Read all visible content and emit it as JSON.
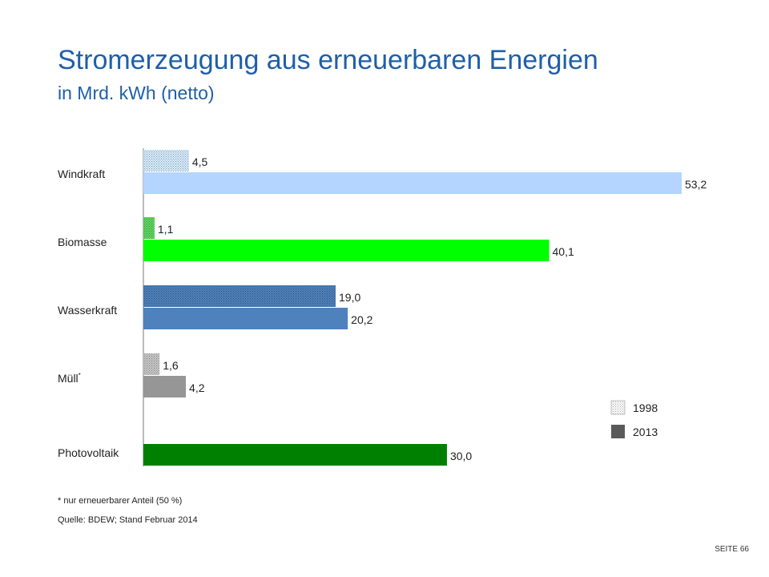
{
  "title": "Stromerzeugung aus erneuerbaren Energien",
  "subtitle": "in Mrd. kWh (netto)",
  "footnote": "* nur erneuerbarer  Anteil (50 %)",
  "source": "Quelle:  BDEW; Stand Februar 2014",
  "page": "SEITE 66",
  "chart_data": {
    "type": "bar",
    "orientation": "horizontal",
    "categories": [
      "Windkraft",
      "Biomasse",
      "Wasserkraft",
      "Müll",
      "Photovoltaik"
    ],
    "category_marks": [
      "",
      "",
      "",
      "*",
      ""
    ],
    "series": [
      {
        "name": "1998",
        "values": [
          4.5,
          1.1,
          19.0,
          1.6,
          null
        ],
        "labels": [
          "4,5",
          "1,1",
          "19,0",
          "1,6",
          ""
        ]
      },
      {
        "name": "2013",
        "values": [
          53.2,
          40.1,
          20.2,
          4.2,
          30.0
        ],
        "labels": [
          "53,2",
          "40,1",
          "20,2",
          "4,2",
          "30,0"
        ]
      }
    ],
    "colors": {
      "2013": [
        "#b3d5ff",
        "#00ff00",
        "#4f81bd",
        "#969696",
        "#008000"
      ],
      "1998": [
        "#d6ecff",
        "#5fd85f",
        "#4f81bd",
        "#c8c8c8",
        "#008000"
      ],
      "legend_1998": "#8a8a8a",
      "legend_2013": "#5a5a5a"
    },
    "xlim": [
      0,
      53.2
    ],
    "legend_position": "bottom-right",
    "grid": false
  }
}
